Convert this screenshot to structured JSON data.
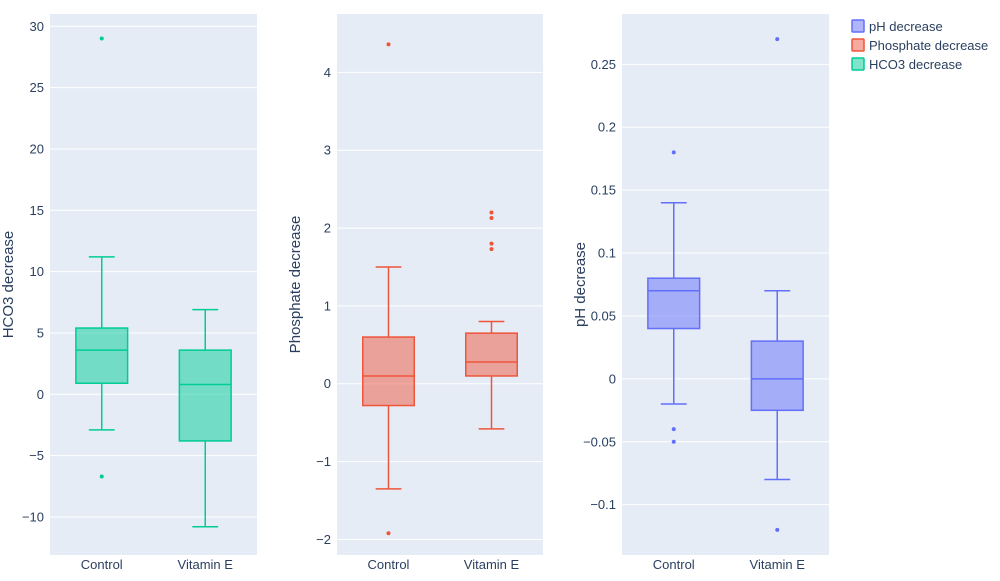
{
  "legend": {
    "placement": "top-right",
    "items": [
      {
        "label": "pH decrease",
        "color": "#636efa"
      },
      {
        "label": "Phosphate decrease",
        "color": "#ef553b"
      },
      {
        "label": "HCO3 decrease",
        "color": "#00cc96"
      }
    ]
  },
  "style": {
    "plot_bg": "#e5ecf6",
    "grid": "#ffffff",
    "text": "#2a3f5f"
  },
  "chart_data": [
    {
      "type": "box",
      "ylabel": "HCO3 decrease",
      "series_name": "HCO3 decrease",
      "color": "#00cc96",
      "categories": [
        "Control",
        "Vitamin E"
      ],
      "ylim": [
        -13.1,
        31
      ],
      "yticks": [
        30,
        25,
        20,
        15,
        10,
        5,
        0,
        -5,
        -10
      ],
      "ytick_labels": [
        "30",
        "25",
        "20",
        "15",
        "10",
        "5",
        "0",
        "−5",
        "−10"
      ],
      "grid": true,
      "boxes": [
        {
          "category": "Control",
          "lower_fence": -2.9,
          "q1": 0.9,
          "median": 3.6,
          "q3": 5.4,
          "upper_fence": 11.2,
          "outliers": [
            29,
            -6.7
          ]
        },
        {
          "category": "Vitamin E",
          "lower_fence": -10.8,
          "q1": -3.8,
          "median": 0.8,
          "q3": 3.6,
          "upper_fence": 6.9,
          "outliers": []
        }
      ]
    },
    {
      "type": "box",
      "ylabel": "Phosphate decrease",
      "series_name": "Phosphate decrease",
      "color": "#ef553b",
      "categories": [
        "Control",
        "Vitamin E"
      ],
      "ylim": [
        -2.2,
        4.75
      ],
      "yticks": [
        4,
        3,
        2,
        1,
        0,
        -1,
        -2
      ],
      "ytick_labels": [
        "4",
        "3",
        "2",
        "1",
        "0",
        "−1",
        "−2"
      ],
      "grid": true,
      "boxes": [
        {
          "category": "Control",
          "lower_fence": -1.35,
          "q1": -0.28,
          "median": 0.1,
          "q3": 0.6,
          "upper_fence": 1.5,
          "outliers": [
            4.36,
            -1.92
          ]
        },
        {
          "category": "Vitamin E",
          "lower_fence": -0.58,
          "q1": 0.1,
          "median": 0.28,
          "q3": 0.65,
          "upper_fence": 0.8,
          "outliers": [
            2.2,
            2.13,
            1.8,
            1.73
          ]
        }
      ]
    },
    {
      "type": "box",
      "ylabel": "pH decrease",
      "series_name": "pH decrease",
      "color": "#636efa",
      "categories": [
        "Control",
        "Vitamin E"
      ],
      "ylim": [
        -0.14,
        0.29
      ],
      "yticks": [
        0.25,
        0.2,
        0.15,
        0.1,
        0.05,
        0,
        -0.05,
        -0.1
      ],
      "ytick_labels": [
        "0.25",
        "0.2",
        "0.15",
        "0.1",
        "0.05",
        "0",
        "−0.05",
        "−0.1"
      ],
      "grid": true,
      "boxes": [
        {
          "category": "Control",
          "lower_fence": -0.02,
          "q1": 0.04,
          "median": 0.07,
          "q3": 0.08,
          "upper_fence": 0.14,
          "outliers": [
            0.18,
            -0.04,
            -0.05
          ]
        },
        {
          "category": "Vitamin E",
          "lower_fence": -0.08,
          "q1": -0.025,
          "median": 0.0,
          "q3": 0.03,
          "upper_fence": 0.07,
          "outliers": [
            0.27,
            -0.12
          ]
        }
      ]
    }
  ]
}
